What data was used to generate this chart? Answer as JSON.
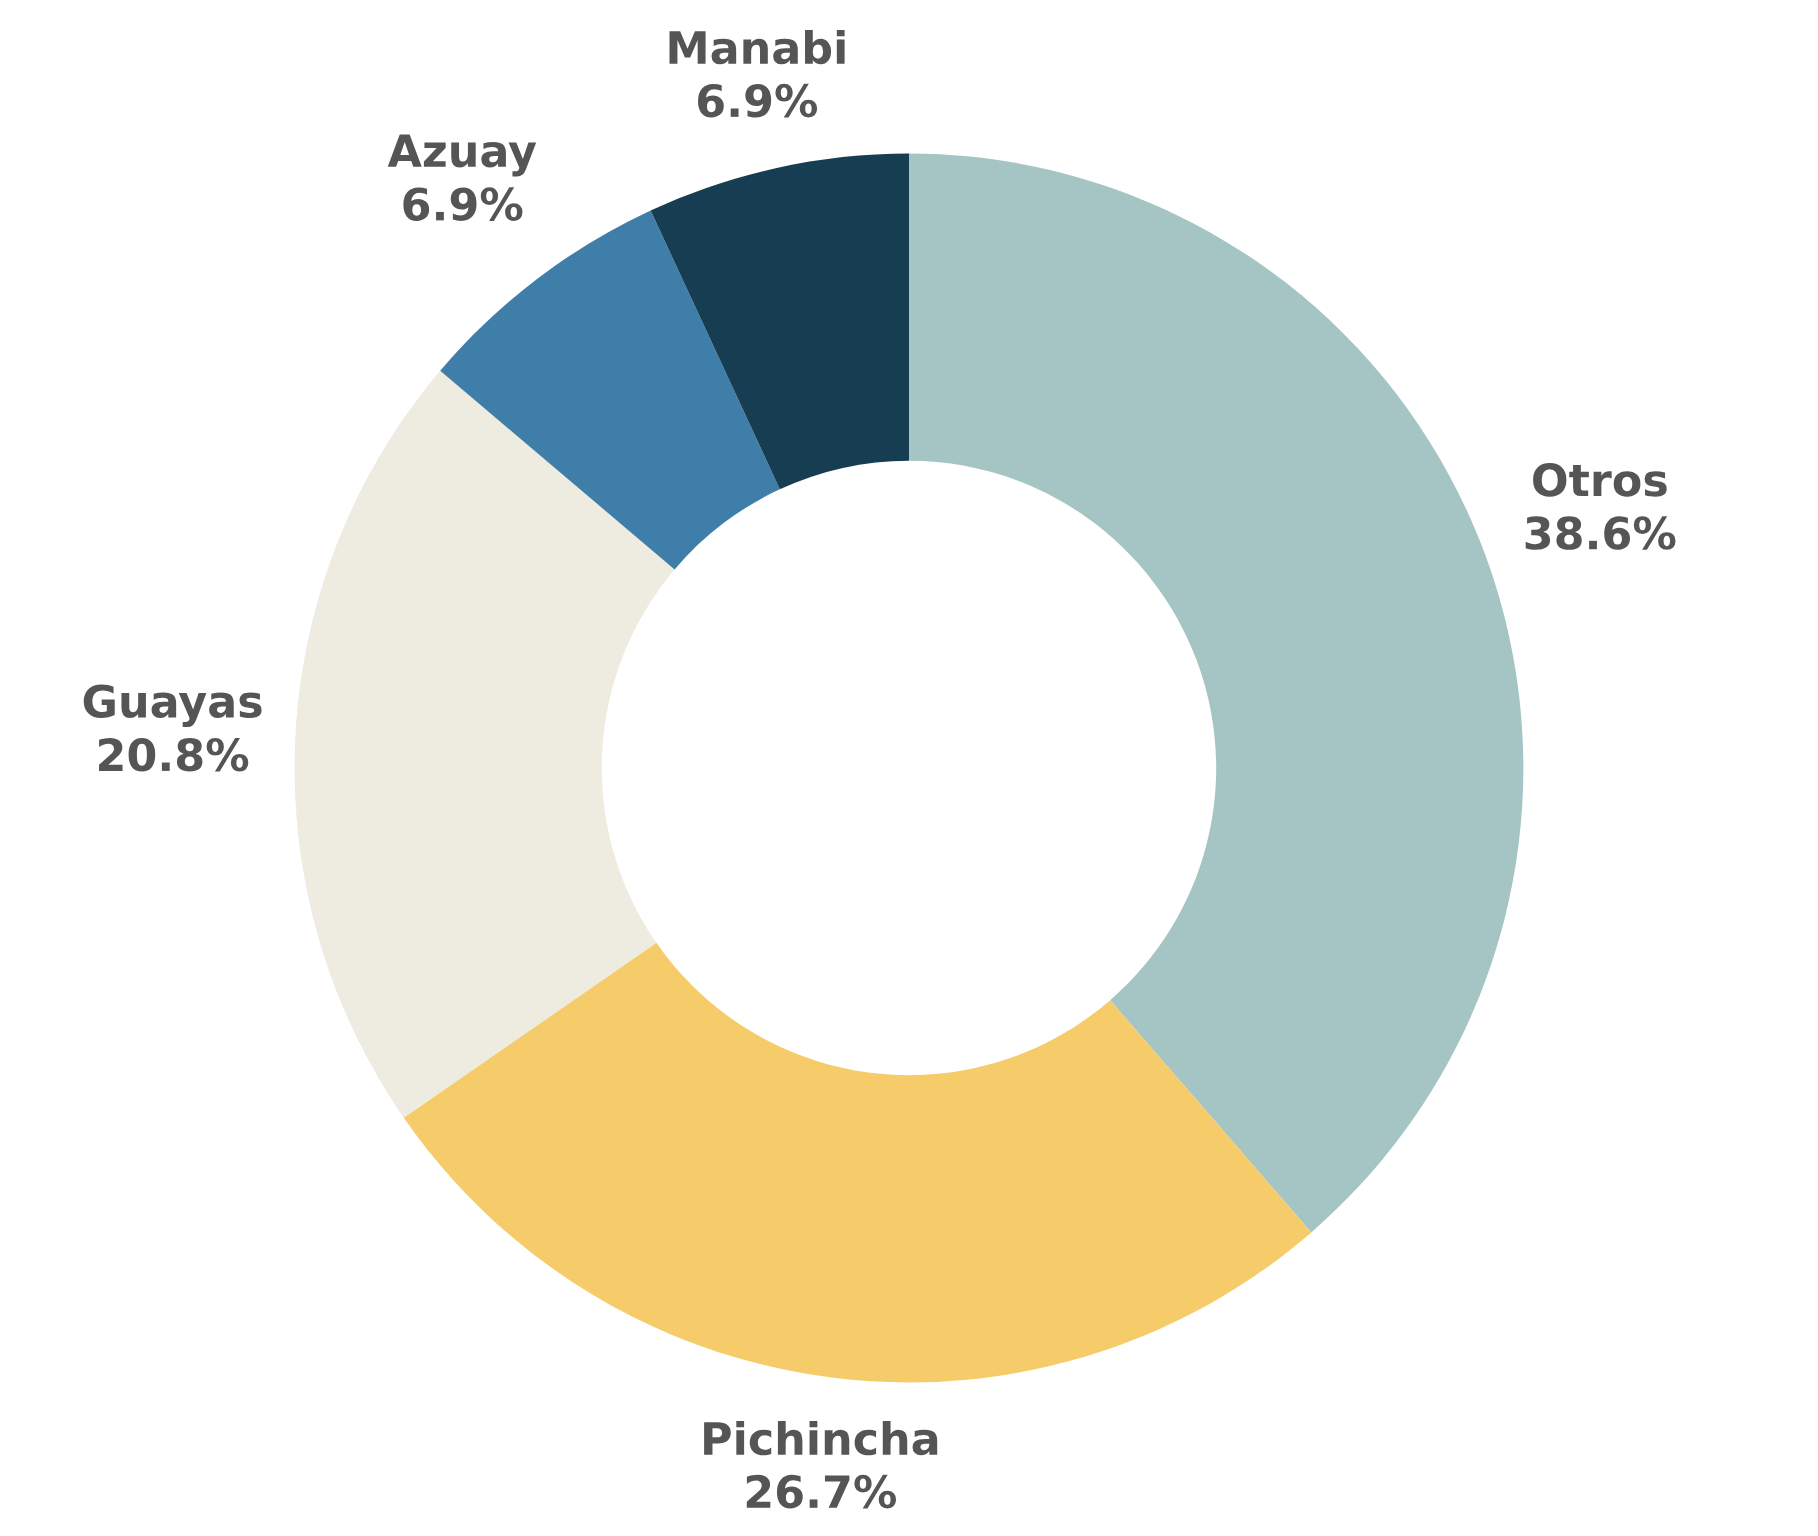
{
  "chart_data": {
    "type": "donut",
    "categories": [
      "Otros",
      "Pichincha",
      "Guayas",
      "Azuay",
      "Manabi"
    ],
    "values": [
      38.6,
      26.7,
      20.8,
      6.9,
      6.9
    ],
    "value_labels": [
      "38.6%",
      "26.7%",
      "20.8%",
      "6.9%",
      "6.9%"
    ],
    "colors": [
      "#a5c5c4",
      "#f5cc69",
      "#eeebe1",
      "#3f7ea9",
      "#163d52"
    ],
    "legend": false
  }
}
